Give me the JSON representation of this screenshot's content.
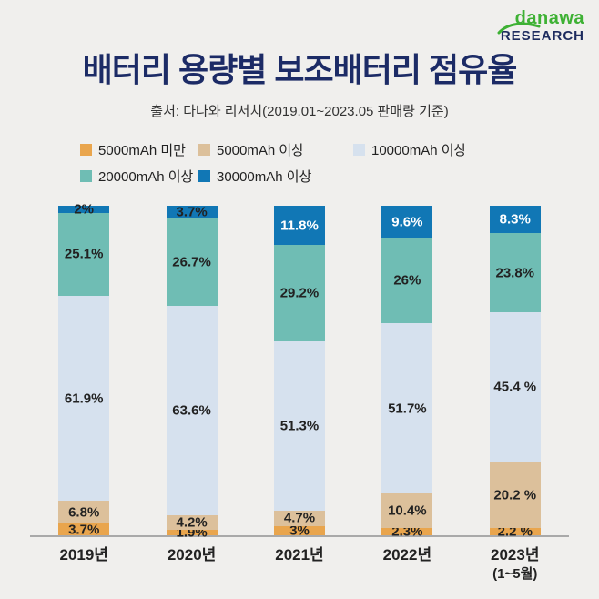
{
  "logo": {
    "brand": "danawa",
    "sub": "RESEARCH",
    "accent_color": "#3eb134",
    "navy_color": "#1d2b5e"
  },
  "title": "배터리 용량별 보조배터리 점유율",
  "subtitle": "출처: 다나와 리서치(2019.01~2023.05 판매량 기준)",
  "chart_data": {
    "type": "bar",
    "stacked": true,
    "title": "배터리 용량별 보조배터리 점유율",
    "categories": [
      "2019년",
      "2020년",
      "2021년",
      "2022년",
      "2023년"
    ],
    "category_sublabels": [
      "",
      "",
      "",
      "",
      "(1~5월)"
    ],
    "series": [
      {
        "name": "5000mAh 미만",
        "color": "#e9a54d",
        "values": [
          3.7,
          1.9,
          3,
          2.3,
          2.2
        ],
        "labels": [
          "3.7%",
          "1.9%",
          "3%",
          "2.3%",
          "2.2 %"
        ]
      },
      {
        "name": "5000mAh 이상",
        "color": "#dcc09b",
        "values": [
          6.8,
          4.2,
          4.7,
          10.4,
          20.2
        ],
        "labels": [
          "6.8%",
          "4.2%",
          "4.7%",
          "10.4%",
          "20.2 %"
        ]
      },
      {
        "name": "10000mAh 이상",
        "color": "#d6e1ee",
        "values": [
          61.9,
          63.6,
          51.3,
          51.7,
          45.4
        ],
        "labels": [
          "61.9%",
          "63.6%",
          "51.3%",
          "51.7%",
          "45.4 %"
        ]
      },
      {
        "name": "20000mAh 이상",
        "color": "#6fbdb4",
        "values": [
          25.1,
          26.7,
          29.2,
          26,
          23.8
        ],
        "labels": [
          "25.1%",
          "26.7%",
          "29.2%",
          "26%",
          "23.8%"
        ]
      },
      {
        "name": "30000mAh 이상",
        "color": "#1177b5",
        "values": [
          2,
          3.7,
          11.8,
          9.6,
          8.3
        ],
        "labels": [
          "2%",
          "3.7%",
          "11.8%",
          "9.6%",
          "8.3%"
        ]
      }
    ],
    "ylim": [
      0,
      100
    ],
    "unit": "%",
    "grid": false,
    "legend_position": "top"
  }
}
